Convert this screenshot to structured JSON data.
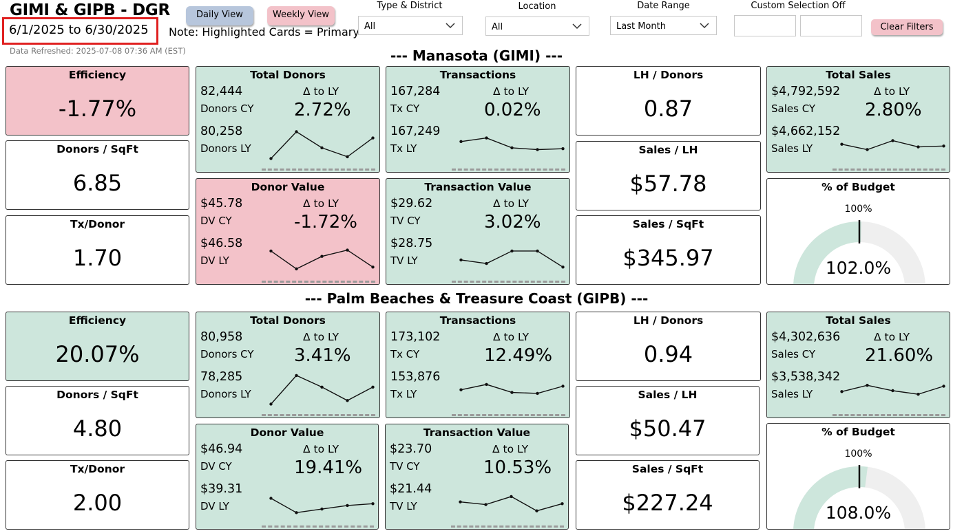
{
  "header": {
    "title": "GIMI & GIPB - DGR",
    "date_range": "6/1/2025 to 6/30/2025",
    "note": "Note: Highlighted Cards = Primary*",
    "refreshed": "Data Refreshed: 2025-07-08 07:36 AM (EST)",
    "daily_view": "Daily View",
    "weekly_view": "Weekly View",
    "clear_filters": "Clear Filters"
  },
  "filters": {
    "type_district": {
      "label": "Type & District",
      "value": "All"
    },
    "location": {
      "label": "Location",
      "value": "All"
    },
    "date_range": {
      "label": "Date Range",
      "value": "Last Month"
    },
    "custom_selection": {
      "label": "Custom Selection Off"
    }
  },
  "colors": {
    "primary_green": "#cde6dc",
    "primary_pink": "#f3c2c9",
    "gauge_fill": "#cde6dc",
    "gauge_track": "#efefef"
  },
  "sections": [
    {
      "title": "--- Manasota (GIMI) ---",
      "efficiency": {
        "title": "Efficiency",
        "value": "-1.77%"
      },
      "donors_sqft": {
        "title": "Donors / SqFt",
        "value": "6.85"
      },
      "tx_donor": {
        "title": "Tx/Donor",
        "value": "1.70"
      },
      "total_donors": {
        "title": "Total Donors",
        "cy": "82,444",
        "cy_label": "Donors CY",
        "ly": "80,258",
        "ly_label": "Donors LY",
        "delta_label": "Δ to LY",
        "delta": "2.72%",
        "trend": [
          1,
          4,
          2.2,
          1.2,
          3.3
        ]
      },
      "donor_value": {
        "title": "Donor Value",
        "cy": "$45.78",
        "cy_label": "DV CY",
        "ly": "$46.58",
        "ly_label": "DV LY",
        "delta_label": "Δ to LY",
        "delta": "-1.72%",
        "trend": [
          3.2,
          1.2,
          2.6,
          3.3,
          1.4
        ]
      },
      "transactions": {
        "title": "Transactions",
        "cy": "167,284",
        "cy_label": "Tx CY",
        "ly": "167,249",
        "ly_label": "Tx LY",
        "delta_label": "Δ to LY",
        "delta": "0.02%",
        "trend": [
          2.9,
          3.3,
          2.2,
          2.0,
          2.1
        ]
      },
      "transaction_value": {
        "title": "Transaction Value",
        "cy": "$29.62",
        "cy_label": "TV CY",
        "ly": "$28.75",
        "ly_label": "TV LY",
        "delta_label": "Δ to LY",
        "delta": "3.02%",
        "trend": [
          2.2,
          1.8,
          3.2,
          3.2,
          1.4
        ]
      },
      "lh_donors": {
        "title": "LH / Donors",
        "value": "0.87"
      },
      "sales_lh": {
        "title": "Sales / LH",
        "value": "$57.78"
      },
      "sales_sqft": {
        "title": "Sales / SqFt",
        "value": "$345.97"
      },
      "total_sales": {
        "title": "Total Sales",
        "cy": "$4,792,592",
        "cy_label": "Sales CY",
        "ly": "$4,662,152",
        "ly_label": "Sales LY",
        "delta_label": "Δ to LY",
        "delta": "2.80%",
        "trend": [
          2.6,
          2.0,
          3.0,
          2.3,
          2.4
        ]
      },
      "budget": {
        "title": "% of Budget",
        "target": "100%",
        "value": "102.0%",
        "fraction": 1.02
      }
    },
    {
      "title": "--- Palm Beaches & Treasure Coast (GIPB) ---",
      "efficiency": {
        "title": "Efficiency",
        "value": "20.07%"
      },
      "donors_sqft": {
        "title": "Donors / SqFt",
        "value": "4.80"
      },
      "tx_donor": {
        "title": "Tx/Donor",
        "value": "2.00"
      },
      "total_donors": {
        "title": "Total Donors",
        "cy": "80,958",
        "cy_label": "Donors CY",
        "ly": "78,285",
        "ly_label": "Donors LY",
        "delta_label": "Δ to LY",
        "delta": "3.41%",
        "trend": [
          1,
          4.2,
          2.9,
          1.4,
          2.9
        ]
      },
      "donor_value": {
        "title": "Donor Value",
        "cy": "$46.94",
        "cy_label": "DV CY",
        "ly": "$39.31",
        "ly_label": "DV LY",
        "delta_label": "Δ to LY",
        "delta": "19.41%",
        "trend": [
          3.0,
          1.4,
          1.8,
          2.2,
          2.4
        ]
      },
      "transactions": {
        "title": "Transactions",
        "cy": "173,102",
        "cy_label": "Tx CY",
        "ly": "153,876",
        "ly_label": "Tx LY",
        "delta_label": "Δ to LY",
        "delta": "12.49%",
        "trend": [
          2.6,
          3.2,
          2.3,
          2.2,
          3.0
        ]
      },
      "transaction_value": {
        "title": "Transaction Value",
        "cy": "$23.70",
        "cy_label": "TV CY",
        "ly": "$21.44",
        "ly_label": "TV LY",
        "delta_label": "Δ to LY",
        "delta": "10.53%",
        "trend": [
          2.6,
          2.3,
          3.2,
          1.6,
          2.4
        ]
      },
      "lh_donors": {
        "title": "LH / Donors",
        "value": "0.94"
      },
      "sales_lh": {
        "title": "Sales / LH",
        "value": "$50.47"
      },
      "sales_sqft": {
        "title": "Sales / SqFt",
        "value": "$227.24"
      },
      "total_sales": {
        "title": "Total Sales",
        "cy": "$4,302,636",
        "cy_label": "Sales CY",
        "ly": "$3,538,342",
        "ly_label": "Sales LY",
        "delta_label": "Δ to LY",
        "delta": "21.60%",
        "trend": [
          2.4,
          3.1,
          2.5,
          2.1,
          3.0
        ]
      },
      "budget": {
        "title": "% of Budget",
        "target": "100%",
        "value": "108.0%",
        "fraction": 1.08
      }
    }
  ]
}
